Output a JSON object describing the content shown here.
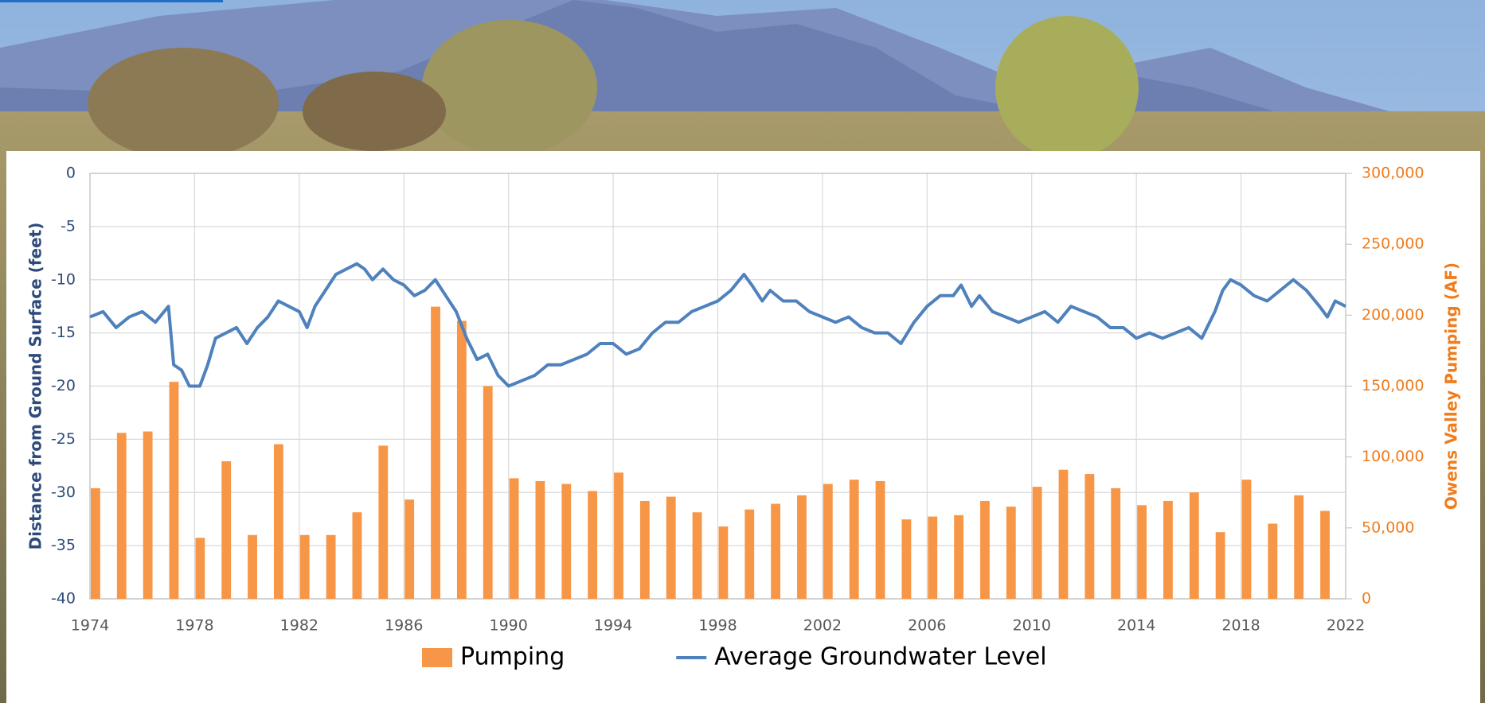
{
  "chart_data": {
    "type": "bar",
    "ylabel": "Distance from Ground Surface (feet)",
    "y2label": "Owens Valley Pumping (AF)",
    "xlim": [
      1974,
      2022
    ],
    "xticks": [
      1974,
      1978,
      1982,
      1986,
      1990,
      1994,
      1998,
      2002,
      2006,
      2010,
      2014,
      2018,
      2022
    ],
    "ylim": [
      -40,
      0
    ],
    "yticks": [
      -40,
      -35,
      -30,
      -25,
      -20,
      -15,
      -10,
      -5,
      0
    ],
    "y2lim": [
      0,
      300000
    ],
    "y2ticks": [
      0,
      {
        "value": 50000,
        "label": "50,000"
      },
      {
        "value": 100000,
        "label": "100,000"
      },
      {
        "value": 150000,
        "label": "150,000"
      },
      {
        "value": 200000,
        "label": "200,000"
      },
      {
        "value": 250000,
        "label": "250,000"
      },
      {
        "value": 300000,
        "label": "300,000"
      }
    ],
    "grid": true,
    "legend": "bottom",
    "series": [
      {
        "name": "Pumping",
        "type": "bar",
        "axis": "y2",
        "color": "#f79646",
        "x": [
          1974,
          1975,
          1976,
          1977,
          1978,
          1979,
          1980,
          1981,
          1982,
          1983,
          1984,
          1985,
          1986,
          1987,
          1988,
          1989,
          1990,
          1991,
          1992,
          1993,
          1994,
          1995,
          1996,
          1997,
          1998,
          1999,
          2000,
          2001,
          2002,
          2003,
          2004,
          2005,
          2006,
          2007,
          2008,
          2009,
          2010,
          2011,
          2012,
          2013,
          2014,
          2015,
          2016,
          2017,
          2018,
          2019,
          2020,
          2021
        ],
        "values": [
          78000,
          117000,
          118000,
          153000,
          43000,
          97000,
          45000,
          109000,
          45000,
          45000,
          61000,
          108000,
          70000,
          206000,
          196000,
          150000,
          85000,
          83000,
          81000,
          76000,
          89000,
          69000,
          72000,
          61000,
          51000,
          63000,
          67000,
          73000,
          81000,
          84000,
          83000,
          56000,
          58000,
          59000,
          69000,
          65000,
          79000,
          91000,
          88000,
          78000,
          66000,
          69000,
          75000,
          47000,
          84000,
          53000,
          73000,
          62000
        ]
      },
      {
        "name": "Average Groundwater Level",
        "type": "line",
        "color": "#4f81bd",
        "x": [
          1974.0,
          1974.5,
          1975.0,
          1975.5,
          1976.0,
          1976.5,
          1977.0,
          1977.2,
          1977.5,
          1977.8,
          1978.2,
          1978.5,
          1978.8,
          1979.2,
          1979.6,
          1980.0,
          1980.4,
          1980.8,
          1981.2,
          1981.6,
          1982.0,
          1982.3,
          1982.6,
          1983.0,
          1983.4,
          1983.8,
          1984.2,
          1984.5,
          1984.8,
          1985.2,
          1985.6,
          1986.0,
          1986.4,
          1986.8,
          1987.2,
          1987.6,
          1988.0,
          1988.4,
          1988.8,
          1989.2,
          1989.6,
          1990.0,
          1990.5,
          1991.0,
          1991.5,
          1992.0,
          1992.5,
          1993.0,
          1993.5,
          1994.0,
          1994.5,
          1995.0,
          1995.5,
          1996.0,
          1996.5,
          1997.0,
          1997.5,
          1998.0,
          1998.5,
          1999.0,
          1999.3,
          1999.7,
          2000.0,
          2000.5,
          2001.0,
          2001.5,
          2002.0,
          2002.5,
          2003.0,
          2003.5,
          2004.0,
          2004.5,
          2005.0,
          2005.5,
          2006.0,
          2006.5,
          2007.0,
          2007.3,
          2007.7,
          2008.0,
          2008.5,
          2009.0,
          2009.5,
          2010.0,
          2010.5,
          2011.0,
          2011.5,
          2012.0,
          2012.5,
          2013.0,
          2013.5,
          2014.0,
          2014.5,
          2015.0,
          2015.5,
          2016.0,
          2016.5,
          2017.0,
          2017.3,
          2017.6,
          2018.0,
          2018.5,
          2019.0,
          2019.5,
          2020.0,
          2020.5,
          2021.0,
          2021.3,
          2021.6,
          2022.0
        ],
        "values": [
          -13.5,
          -13,
          -14.5,
          -13.5,
          -13,
          -14,
          -12.5,
          -18,
          -18.5,
          -20,
          -20,
          -18,
          -15.5,
          -15,
          -14.5,
          -16,
          -14.5,
          -13.5,
          -12,
          -12.5,
          -13,
          -14.5,
          -12.5,
          -11,
          -9.5,
          -9,
          -8.5,
          -9,
          -10,
          -9,
          -10,
          -10.5,
          -11.5,
          -11,
          -10,
          -11.5,
          -13,
          -15.5,
          -17.5,
          -17,
          -19,
          -20,
          -19.5,
          -19,
          -18,
          -18,
          -17.5,
          -17,
          -16,
          -16,
          -17,
          -16.5,
          -15,
          -14,
          -14,
          -13,
          -12.5,
          -12,
          -11,
          -9.5,
          -10.5,
          -12,
          -11,
          -12,
          -12,
          -13,
          -13.5,
          -14,
          -13.5,
          -14.5,
          -15,
          -15,
          -16,
          -14,
          -12.5,
          -11.5,
          -11.5,
          -10.5,
          -12.5,
          -11.5,
          -13,
          -13.5,
          -14,
          -13.5,
          -13,
          -14,
          -12.5,
          -13,
          -13.5,
          -14.5,
          -14.5,
          -15.5,
          -15,
          -15.5,
          -15,
          -14.5,
          -15.5,
          -13,
          -11,
          -10,
          -10.5,
          -11.5,
          -12,
          -11,
          -10,
          -11,
          -12.5,
          -13.5,
          -12,
          -12.5
        ]
      }
    ]
  }
}
